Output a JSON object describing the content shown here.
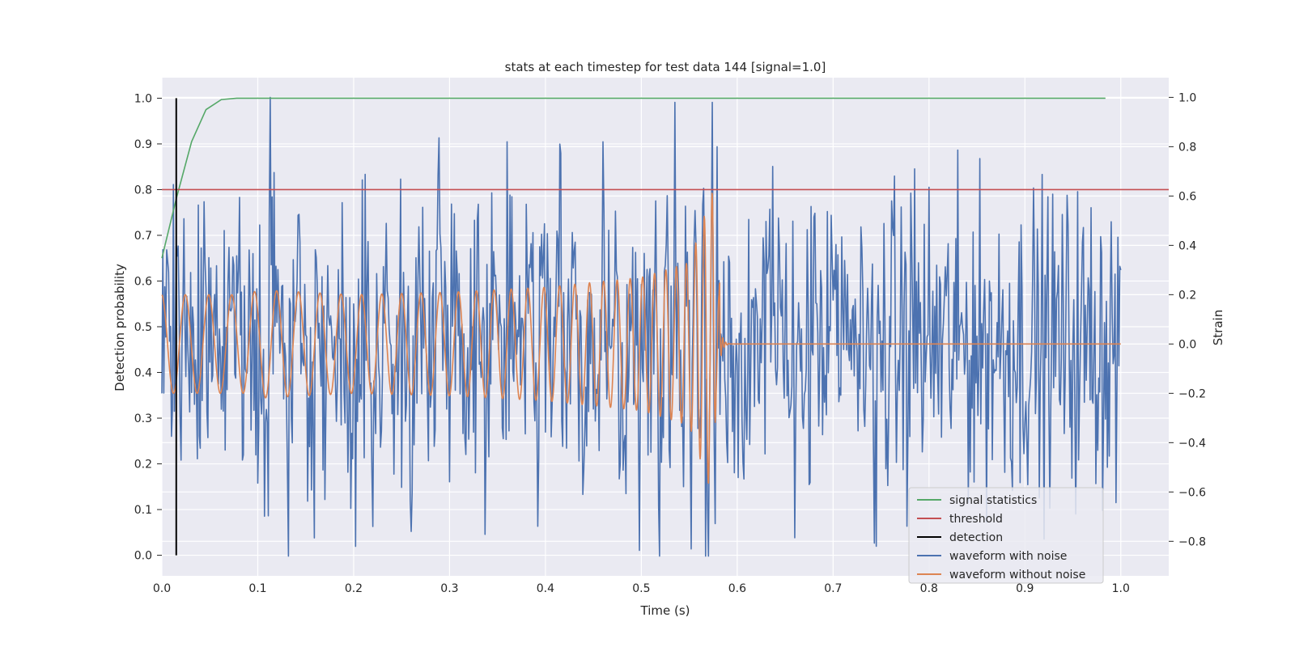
{
  "chart_data": {
    "type": "line",
    "title": "stats at each timestep for test data 144 [signal=1.0]",
    "xlabel": "Time (s)",
    "ylabel_left": "Detection probability",
    "ylabel_right": "Strain",
    "xlim": [
      0.0,
      1.05
    ],
    "ylim_left": [
      -0.045,
      1.045
    ],
    "ylim_right": [
      -0.94,
      1.08
    ],
    "x_ticks": [
      0.0,
      0.1,
      0.2,
      0.3,
      0.4,
      0.5,
      0.6,
      0.7,
      0.8,
      0.9,
      1.0
    ],
    "x_tick_labels": [
      "0.0",
      "0.1",
      "0.2",
      "0.3",
      "0.4",
      "0.5",
      "0.6",
      "0.7",
      "0.8",
      "0.9",
      "1.0"
    ],
    "y_left_ticks": [
      0.0,
      0.1,
      0.2,
      0.3,
      0.4,
      0.5,
      0.6,
      0.7,
      0.8,
      0.9,
      1.0
    ],
    "y_left_tick_labels": [
      "0.0",
      "0.1",
      "0.2",
      "0.3",
      "0.4",
      "0.5",
      "0.6",
      "0.7",
      "0.8",
      "0.9",
      "1.0"
    ],
    "y_right_ticks": [
      -0.8,
      -0.6,
      -0.4,
      -0.2,
      0.0,
      0.2,
      0.4,
      0.6,
      0.8,
      1.0
    ],
    "y_right_tick_labels": [
      "−0.8",
      "−0.6",
      "−0.4",
      "−0.2",
      "0.0",
      "0.2",
      "0.4",
      "0.6",
      "0.8",
      "1.0"
    ],
    "grid": true,
    "legend_position": "lower right",
    "colors": {
      "background": "#eaeaf2",
      "grid": "#ffffff",
      "signal_statistics": "#55a868",
      "threshold": "#c44e52",
      "detection": "#000000",
      "waveform_with_noise": "#4c72b0",
      "waveform_without_noise": "#dd8452"
    },
    "series": [
      {
        "name": "signal statistics",
        "axis": "left",
        "x": [
          0.0,
          0.015,
          0.031,
          0.046,
          0.062,
          0.078,
          0.1,
          0.2,
          0.4,
          0.6,
          0.8,
          0.984
        ],
        "y": [
          0.65,
          0.78,
          0.905,
          0.975,
          0.997,
          1.0,
          1.0,
          1.0,
          1.0,
          1.0,
          1.0,
          1.0
        ]
      },
      {
        "name": "threshold",
        "axis": "left",
        "x": [
          0.0,
          1.05
        ],
        "y": [
          0.8,
          0.8
        ]
      },
      {
        "name": "detection",
        "axis": "left",
        "x": [
          0.015,
          0.015
        ],
        "y": [
          0.0,
          1.0
        ]
      },
      {
        "name": "waveform with noise",
        "axis": "right",
        "description_points": {
          "x": [
            0.0,
            0.113,
            0.22,
            0.36,
            0.46,
            0.535,
            0.567,
            0.579,
            0.637,
            0.745,
            0.785,
            1.0
          ],
          "y": [
            -0.2,
            1.0,
            -0.74,
            0.82,
            0.82,
            0.98,
            -0.86,
            0.8,
            0.72,
            -0.82,
            0.71,
            0.3
          ]
        }
      },
      {
        "name": "waveform without noise",
        "axis": "right",
        "description_points": {
          "x": [
            0.0,
            0.1,
            0.2,
            0.3,
            0.4,
            0.5,
            0.55,
            0.575,
            0.582,
            0.59,
            1.0
          ],
          "y": [
            0.0,
            0.22,
            0.2,
            0.21,
            0.23,
            0.27,
            0.33,
            0.63,
            -0.34,
            0.0,
            0.0
          ]
        }
      }
    ],
    "legend": [
      {
        "label": "signal statistics",
        "color": "#55a868"
      },
      {
        "label": "threshold",
        "color": "#c44e52"
      },
      {
        "label": "detection",
        "color": "#000000"
      },
      {
        "label": "waveform with noise",
        "color": "#4c72b0"
      },
      {
        "label": "waveform without noise",
        "color": "#dd8452"
      }
    ]
  }
}
